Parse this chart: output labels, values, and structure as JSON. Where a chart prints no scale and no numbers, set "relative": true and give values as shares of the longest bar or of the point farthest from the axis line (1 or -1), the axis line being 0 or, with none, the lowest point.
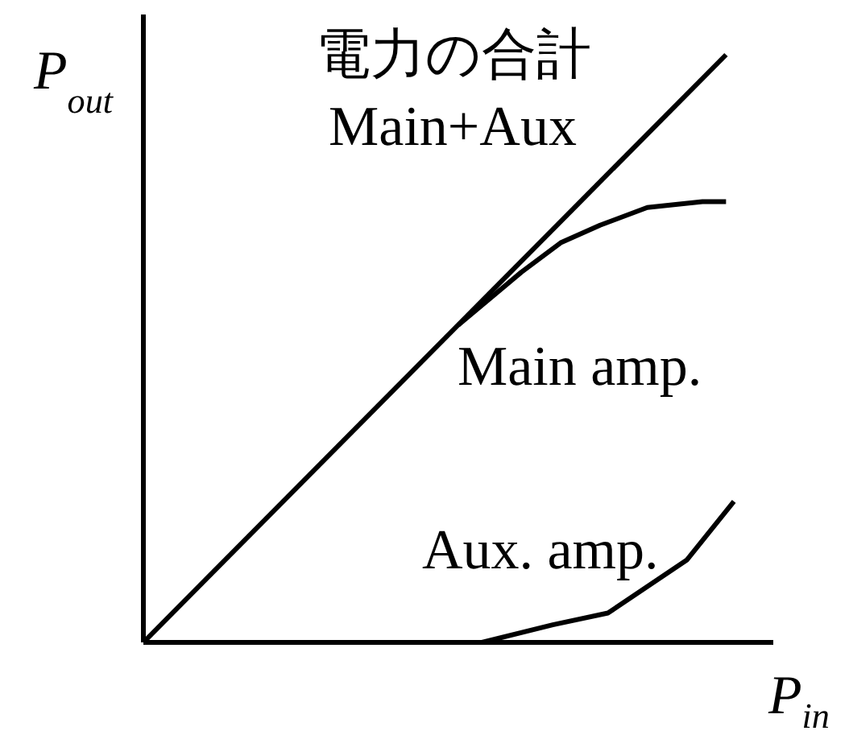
{
  "chart_data": {
    "type": "line",
    "title": "電力の合計",
    "xlabel": "P$_{in}$",
    "ylabel": "P$_{out}$",
    "relative": true,
    "marker": "none",
    "categories": [
      null,
      null,
      null,
      null,
      null,
      null,
      null,
      null,
      null,
      null,
      null,
      null,
      null,
      null,
      null,
      null,
      null,
      null,
      null,
      null,
      null,
      null,
      null,
      null,
      null,
      null,
      null,
      null,
      null,
      null,
      null,
      null,
      null,
      null,
      null,
      null,
      null,
      null,
      null,
      null,
      null,
      null,
      null,
      null,
      null,
      null,
      null,
      null,
      null,
      null,
      null,
      null,
      null,
      null,
      null,
      null,
      null,
      null,
      null,
      null,
      null,
      null,
      null,
      null,
      null,
      null,
      null,
      null,
      null,
      null,
      null,
      null,
      null,
      null,
      null,
      null,
      null,
      null,
      null,
      null,
      null
    ],
    "series": [
      {
        "name": "Main+Aux",
        "color": "#000000",
        "values": [
          0,
          null,
          null,
          null,
          null,
          null,
          null,
          null,
          null,
          null,
          null,
          null,
          null,
          null,
          null,
          null,
          null,
          null,
          null,
          null,
          null,
          null,
          null,
          null,
          null,
          null,
          null,
          null,
          null,
          null,
          null,
          null,
          null,
          null,
          null,
          null,
          null,
          null,
          null,
          null,
          null,
          null,
          null,
          null,
          null,
          null,
          null,
          null,
          null,
          null,
          null,
          null,
          null,
          null,
          null,
          null,
          null,
          null,
          null,
          null,
          null,
          null,
          null,
          null,
          null,
          null,
          null,
          null,
          null,
          null,
          null,
          null,
          null,
          null,
          1,
          null,
          null,
          null,
          null,
          null,
          null
        ]
      },
      {
        "name": "Main amp.",
        "color": "#000000",
        "values": [
          null,
          null,
          null,
          null,
          null,
          null,
          null,
          null,
          null,
          null,
          null,
          null,
          null,
          null,
          null,
          null,
          null,
          null,
          null,
          null,
          null,
          null,
          null,
          null,
          null,
          null,
          null,
          null,
          null,
          null,
          null,
          null,
          null,
          null,
          null,
          null,
          null,
          null,
          null,
          null,
          0.54,
          null,
          null,
          null,
          null,
          null,
          null,
          null,
          0.63,
          null,
          null,
          null,
          null,
          0.68,
          null,
          null,
          null,
          null,
          0.71,
          null,
          null,
          null,
          null,
          null,
          0.74,
          null,
          null,
          null,
          null,
          null,
          null,
          0.75,
          null,
          null,
          0.75,
          null,
          null,
          null,
          null,
          null,
          null
        ]
      },
      {
        "name": "Aux. amp.",
        "color": "#000000",
        "values": [
          null,
          null,
          null,
          null,
          null,
          null,
          null,
          null,
          null,
          null,
          null,
          null,
          null,
          null,
          null,
          null,
          null,
          null,
          null,
          null,
          null,
          null,
          null,
          null,
          null,
          null,
          null,
          null,
          null,
          null,
          null,
          null,
          null,
          null,
          null,
          null,
          null,
          null,
          null,
          null,
          null,
          null,
          null,
          0,
          null,
          null,
          null,
          null,
          null,
          null,
          null,
          null,
          0.03,
          null,
          null,
          null,
          null,
          null,
          null,
          0.05,
          null,
          null,
          null,
          null,
          null,
          null,
          null,
          null,
          null,
          0.14,
          null,
          null,
          null,
          null,
          null,
          0.24,
          null,
          null,
          null,
          null,
          null
        ]
      }
    ]
  }
}
